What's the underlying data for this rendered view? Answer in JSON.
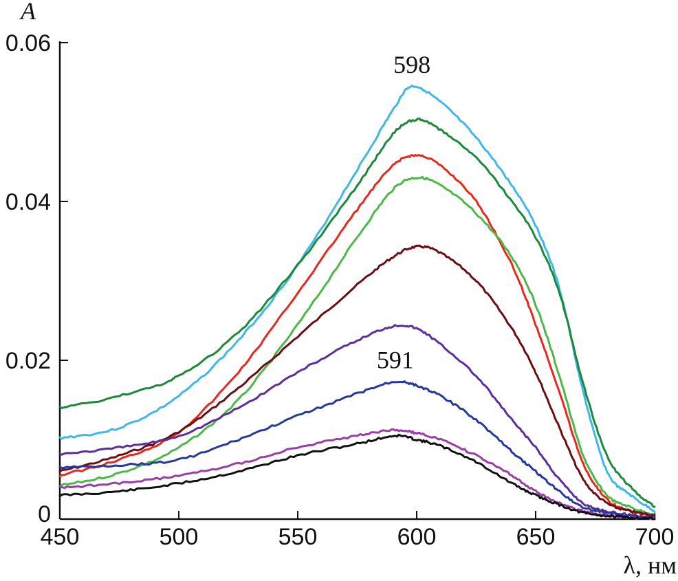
{
  "chart_data": {
    "type": "line",
    "title": "",
    "xlabel": "λ, нм",
    "ylabel": "A",
    "xlim": [
      450,
      700
    ],
    "ylim": [
      0,
      0.06
    ],
    "x_ticks": [
      450,
      500,
      550,
      600,
      650,
      700
    ],
    "x_tick_labels": [
      "450",
      "500",
      "550",
      "600",
      "650",
      "700"
    ],
    "y_ticks": [
      0,
      0.02,
      0.04,
      0.06
    ],
    "y_tick_labels": [
      "0",
      "0.02",
      "0.04",
      "0.06"
    ],
    "grid": false,
    "annotations": [
      {
        "text": "598",
        "x": 598,
        "y": 0.0555
      },
      {
        "text": "591",
        "x": 591,
        "y": 0.0183
      }
    ],
    "series": [
      {
        "color": "#3fb7e8",
        "x": [
          450,
          475,
          500,
          525,
          550,
          575,
          590,
          598,
          610,
          625,
          640,
          650,
          660,
          670,
          680,
          690,
          700
        ],
        "y": [
          0.0102,
          0.0115,
          0.0155,
          0.0225,
          0.032,
          0.044,
          0.0515,
          0.0545,
          0.0525,
          0.048,
          0.042,
          0.037,
          0.029,
          0.016,
          0.006,
          0.003,
          0.001
        ]
      },
      {
        "color": "#1a8a3a",
        "x": [
          450,
          475,
          500,
          525,
          550,
          575,
          590,
          600,
          610,
          625,
          640,
          650,
          660,
          670,
          680,
          690,
          700
        ],
        "y": [
          0.014,
          0.0155,
          0.018,
          0.0235,
          0.032,
          0.042,
          0.0485,
          0.0503,
          0.049,
          0.0455,
          0.04,
          0.0355,
          0.0285,
          0.017,
          0.008,
          0.004,
          0.0015
        ]
      },
      {
        "color": "#e8281e",
        "x": [
          450,
          475,
          500,
          525,
          550,
          575,
          590,
          600,
          610,
          625,
          640,
          650,
          660,
          670,
          680,
          690,
          700
        ],
        "y": [
          0.0055,
          0.0075,
          0.011,
          0.0185,
          0.0285,
          0.039,
          0.0445,
          0.0458,
          0.0445,
          0.04,
          0.032,
          0.0245,
          0.016,
          0.007,
          0.0025,
          0.001,
          0.0005
        ]
      },
      {
        "color": "#4cb848",
        "x": [
          450,
          475,
          500,
          525,
          550,
          575,
          590,
          600,
          610,
          625,
          640,
          650,
          660,
          670,
          680,
          690,
          700
        ],
        "y": [
          0.0042,
          0.0058,
          0.009,
          0.015,
          0.0245,
          0.0355,
          0.0415,
          0.043,
          0.042,
          0.0385,
          0.033,
          0.027,
          0.018,
          0.008,
          0.003,
          0.0015,
          0.0005
        ]
      },
      {
        "color": "#6b0e14",
        "x": [
          450,
          475,
          500,
          525,
          550,
          575,
          590,
          600,
          610,
          625,
          640,
          650,
          660,
          670,
          680,
          690,
          700
        ],
        "y": [
          0.006,
          0.008,
          0.011,
          0.0165,
          0.023,
          0.0295,
          0.033,
          0.0343,
          0.0335,
          0.03,
          0.024,
          0.0185,
          0.0115,
          0.005,
          0.002,
          0.001,
          0.0005
        ]
      },
      {
        "color": "#5b2d9e",
        "x": [
          450,
          475,
          500,
          525,
          550,
          575,
          590,
          600,
          610,
          625,
          640,
          650,
          660,
          670,
          680,
          690,
          700
        ],
        "y": [
          0.0082,
          0.009,
          0.0105,
          0.014,
          0.0185,
          0.0225,
          0.0243,
          0.024,
          0.022,
          0.018,
          0.0125,
          0.009,
          0.005,
          0.002,
          0.001,
          0.0005,
          0.0003
        ]
      },
      {
        "color": "#24399b",
        "x": [
          450,
          475,
          500,
          525,
          550,
          575,
          591,
          600,
          610,
          625,
          640,
          650,
          660,
          670,
          680,
          690,
          700
        ],
        "y": [
          0.0065,
          0.0068,
          0.0075,
          0.01,
          0.013,
          0.0158,
          0.0173,
          0.0168,
          0.0155,
          0.0125,
          0.0085,
          0.006,
          0.0035,
          0.0015,
          0.0008,
          0.0004,
          0.0002
        ]
      },
      {
        "color": "#9a3ea6",
        "x": [
          450,
          475,
          500,
          525,
          550,
          575,
          591,
          600,
          610,
          625,
          640,
          650,
          660,
          670,
          680,
          690,
          700
        ],
        "y": [
          0.004,
          0.0045,
          0.0055,
          0.007,
          0.009,
          0.0105,
          0.0112,
          0.0108,
          0.01,
          0.008,
          0.0055,
          0.0035,
          0.002,
          0.001,
          0.0005,
          0.0002,
          0.0001
        ]
      },
      {
        "color": "#111111",
        "x": [
          450,
          475,
          500,
          525,
          550,
          575,
          591,
          600,
          610,
          625,
          640,
          650,
          660,
          670,
          680,
          690,
          700
        ],
        "y": [
          0.003,
          0.0035,
          0.0045,
          0.006,
          0.008,
          0.0095,
          0.0105,
          0.01,
          0.0092,
          0.0072,
          0.0045,
          0.003,
          0.0018,
          0.0008,
          0.0004,
          0.0002,
          0.0001
        ]
      }
    ]
  }
}
